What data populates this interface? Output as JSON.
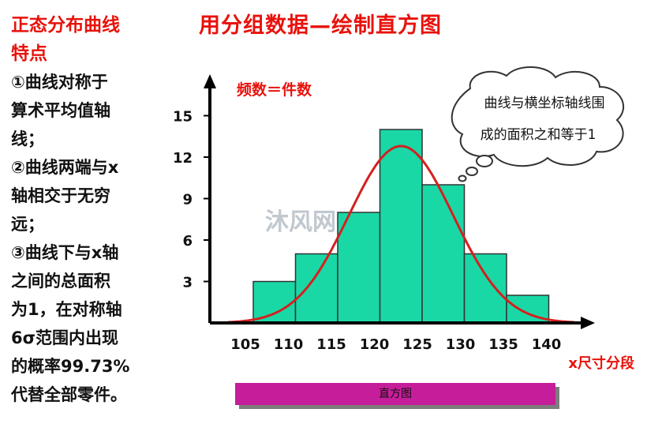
{
  "side_title": [
    "正态分布曲线",
    "特点"
  ],
  "main_title": "用分组数据—绘制直方图",
  "side_lines": [
    "①曲线对称于",
    "算术平均值轴",
    "线；",
    "②曲线两端与x",
    "轴相交于无穷",
    "远；",
    "③曲线下与x轴",
    "之间的总面积",
    "为1，在对称轴",
    "6σ范围内出现",
    "的概率99.73%",
    "代替全部零件。"
  ],
  "watermark": "沐风网",
  "caption_bar": "直方图",
  "colors": {
    "title": "#e8120c",
    "bar_fill": "#19d8a6",
    "bar_stroke": "#333333",
    "curve": "#d42020",
    "caption_bar": "#c61e9a"
  },
  "chart_data": {
    "type": "bar",
    "ylabel": "频数＝件数",
    "xlabel": "x尺寸分段",
    "x_ticks": [
      105,
      110,
      115,
      120,
      125,
      130,
      135,
      140
    ],
    "y_ticks": [
      3,
      6,
      9,
      12,
      15
    ],
    "bins": [
      {
        "start": 110,
        "end": 115,
        "value": 3
      },
      {
        "start": 115,
        "end": 120,
        "value": 5
      },
      {
        "start": 120,
        "end": 125,
        "value": 8
      },
      {
        "start": 125,
        "end": 130,
        "value": 14
      },
      {
        "start": 130,
        "end": 135,
        "value": 10
      },
      {
        "start": 135,
        "end": 140,
        "value": 5
      },
      {
        "start": 140,
        "end": 145,
        "value": 2
      }
    ],
    "curve": {
      "mean": 127.5,
      "sd": 6.2,
      "peak": 12.8
    },
    "annotation": [
      "曲线与横坐标轴线围",
      "成的面积之和等于1"
    ],
    "legend": "none",
    "grid": false
  }
}
